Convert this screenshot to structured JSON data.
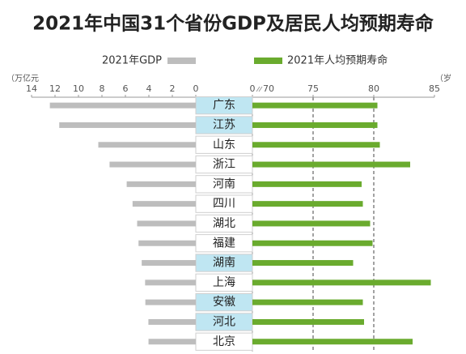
{
  "chart_data": {
    "type": "bar",
    "title": "2021年中国31个省份GDP及居民人均预期寿命",
    "categories": [
      "广东",
      "江苏",
      "山东",
      "浙江",
      "河南",
      "四川",
      "湖北",
      "福建",
      "湖南",
      "上海",
      "安徽",
      "河北",
      "北京"
    ],
    "highlighted": [
      true,
      true,
      false,
      false,
      false,
      false,
      false,
      false,
      true,
      false,
      true,
      true,
      false
    ],
    "highlight_color": "#bfe6f2",
    "series": [
      {
        "name": "2021年GDP",
        "color": "#bdbdbd",
        "axis": "x",
        "values": [
          12.44,
          11.64,
          8.31,
          7.35,
          5.89,
          5.39,
          5.0,
          4.88,
          4.61,
          4.32,
          4.3,
          4.04,
          4.03
        ]
      },
      {
        "name": "2021年人均预期寿命",
        "color": "#6aab2e",
        "axis": "x2",
        "values": [
          80.3,
          80.3,
          80.5,
          83.0,
          79.0,
          79.1,
          79.7,
          79.9,
          78.3,
          84.7,
          79.1,
          79.2,
          83.2
        ]
      }
    ],
    "xlim": [
      0,
      14
    ],
    "xticks": [
      14,
      12,
      10,
      8,
      6,
      4,
      2,
      0
    ],
    "x2lim": [
      70,
      85
    ],
    "x2ticks": [
      70,
      75,
      80,
      85
    ],
    "x_unit": "（万亿元",
    "x2_unit": "（岁",
    "x2_break_label": "0",
    "x2_grid": "dashed"
  }
}
